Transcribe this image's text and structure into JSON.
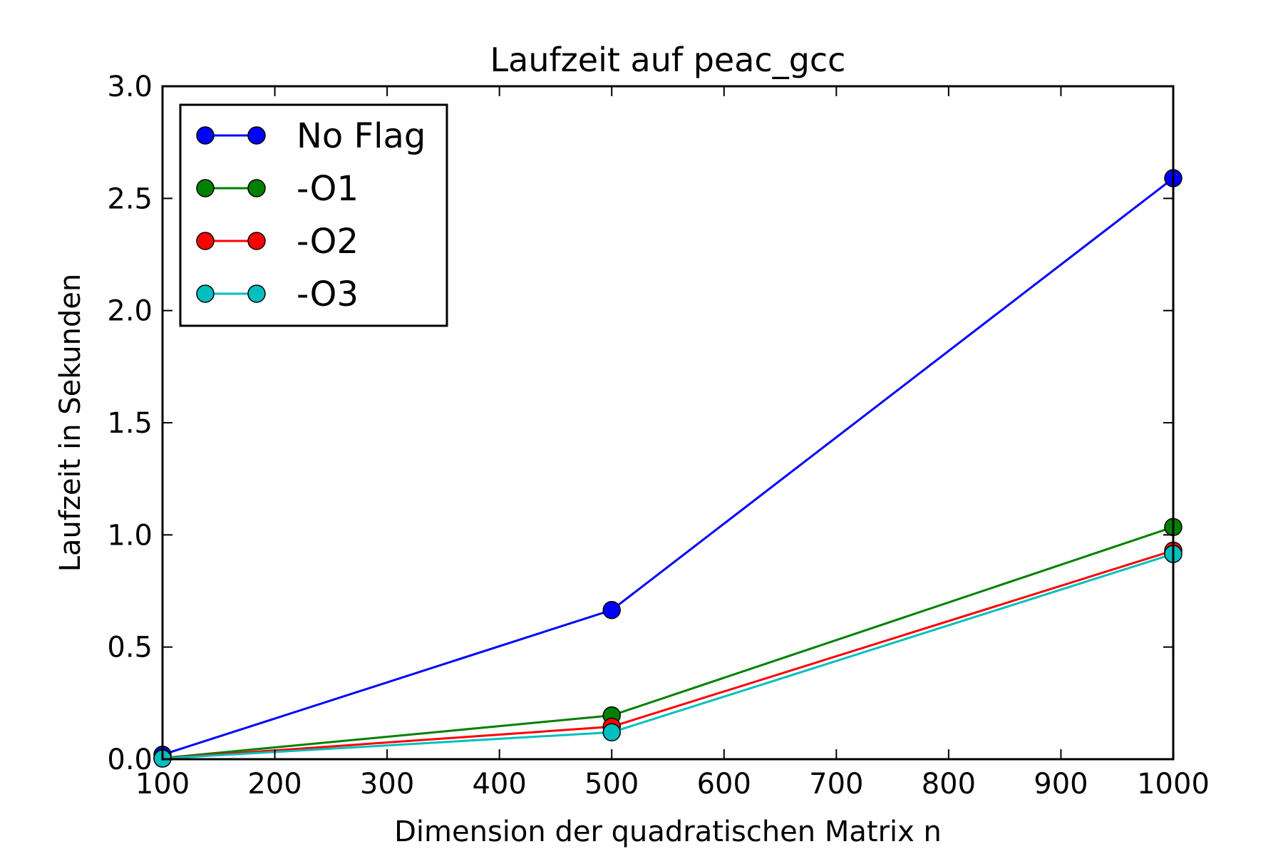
{
  "chart_data": {
    "type": "line",
    "title": "Laufzeit auf peac_gcc",
    "xlabel": "Dimension der quadratischen Matrix n",
    "ylabel": "Laufzeit in Sekunden",
    "xlim": [
      100,
      1000
    ],
    "ylim": [
      0.0,
      3.0
    ],
    "xticks": [
      100,
      200,
      300,
      400,
      500,
      600,
      700,
      800,
      900,
      1000
    ],
    "xtick_labels": [
      "100",
      "200",
      "300",
      "400",
      "500",
      "600",
      "700",
      "800",
      "900",
      "1000"
    ],
    "yticks": [
      0.0,
      0.5,
      1.0,
      1.5,
      2.0,
      2.5,
      3.0
    ],
    "ytick_labels": [
      "0.0",
      "0.5",
      "1.0",
      "1.5",
      "2.0",
      "2.5",
      "3.0"
    ],
    "grid": false,
    "legend_position": "top-left",
    "x": [
      100,
      500,
      1000
    ],
    "series": [
      {
        "name": "No Flag",
        "color": "#0000ff",
        "values": [
          0.02,
          0.665,
          2.59
        ]
      },
      {
        "name": "-O1",
        "color": "#008000",
        "values": [
          0.005,
          0.195,
          1.035
        ]
      },
      {
        "name": "-O2",
        "color": "#ff0000",
        "values": [
          0.004,
          0.145,
          0.93
        ]
      },
      {
        "name": "-O3",
        "color": "#00bfbf",
        "values": [
          0.003,
          0.12,
          0.915
        ]
      }
    ]
  }
}
